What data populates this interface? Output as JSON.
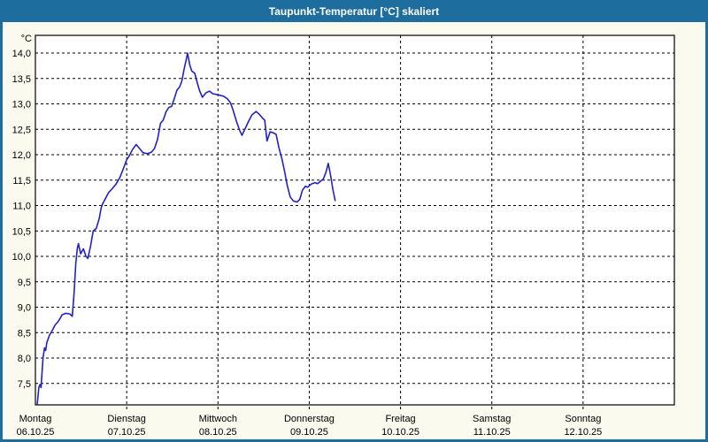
{
  "window": {
    "title": "Taupunkt-Temperatur [°C] skaliert"
  },
  "chart_data": {
    "type": "line",
    "title": "Taupunkt-Temperatur [°C] skaliert",
    "ylabel": "°C",
    "xlabel": "",
    "ylim": [
      7.5,
      14.0
    ],
    "ytick_step": 0.5,
    "grid": "dashed-black-on-white",
    "legend": "none",
    "x_days": [
      {
        "name": "Montag",
        "date": "06.10.25"
      },
      {
        "name": "Dienstag",
        "date": "07.10.25"
      },
      {
        "name": "Mittwoch",
        "date": "08.10.25"
      },
      {
        "name": "Donnerstag",
        "date": "09.10.25"
      },
      {
        "name": "Freitag",
        "date": "10.10.25"
      },
      {
        "name": "Samstag",
        "date": "11.10.25"
      },
      {
        "name": "Sonntag",
        "date": "12.10.25"
      }
    ],
    "colors": {
      "line": "#2121c8",
      "plot_bg": "#ffffff",
      "frame": "#1d6e9e",
      "outer_bg": "#fbfaef",
      "grid": "#000000",
      "title_text": "#ffffff"
    },
    "series": [
      {
        "name": "Taupunkt",
        "unit": "°C",
        "points_format": "[hours_since_monday_00, temperature_C]",
        "points": [
          [
            0.5,
            7.1
          ],
          [
            0.9,
            7.42
          ],
          [
            1.2,
            7.48
          ],
          [
            1.5,
            7.42
          ],
          [
            2.0,
            8.0
          ],
          [
            2.4,
            8.2
          ],
          [
            2.7,
            8.15
          ],
          [
            3.0,
            8.3
          ],
          [
            3.7,
            8.45
          ],
          [
            4.5,
            8.55
          ],
          [
            5.2,
            8.65
          ],
          [
            6.0,
            8.72
          ],
          [
            6.5,
            8.78
          ],
          [
            7.0,
            8.85
          ],
          [
            8.0,
            8.88
          ],
          [
            9.0,
            8.87
          ],
          [
            9.7,
            8.82
          ],
          [
            10.2,
            9.3
          ],
          [
            10.6,
            9.85
          ],
          [
            11.0,
            10.15
          ],
          [
            11.3,
            10.25
          ],
          [
            11.9,
            10.05
          ],
          [
            12.6,
            10.15
          ],
          [
            13.3,
            10.0
          ],
          [
            13.8,
            9.96
          ],
          [
            14.5,
            10.2
          ],
          [
            15.2,
            10.5
          ],
          [
            16.0,
            10.55
          ],
          [
            16.8,
            10.75
          ],
          [
            17.3,
            10.95
          ],
          [
            17.6,
            11.02
          ],
          [
            18.3,
            11.12
          ],
          [
            19.2,
            11.25
          ],
          [
            20.2,
            11.33
          ],
          [
            21.2,
            11.42
          ],
          [
            22.2,
            11.55
          ],
          [
            23.1,
            11.72
          ],
          [
            24.0,
            11.9
          ],
          [
            24.7,
            11.98
          ],
          [
            25.5,
            12.1
          ],
          [
            26.5,
            12.2
          ],
          [
            27.3,
            12.13
          ],
          [
            28.3,
            12.04
          ],
          [
            29.5,
            12.02
          ],
          [
            30.5,
            12.05
          ],
          [
            31.3,
            12.12
          ],
          [
            32.1,
            12.3
          ],
          [
            32.9,
            12.62
          ],
          [
            33.6,
            12.68
          ],
          [
            34.4,
            12.85
          ],
          [
            35.1,
            12.93
          ],
          [
            35.8,
            12.95
          ],
          [
            36.5,
            13.1
          ],
          [
            37.2,
            13.27
          ],
          [
            37.9,
            13.33
          ],
          [
            38.5,
            13.45
          ],
          [
            39.1,
            13.68
          ],
          [
            39.6,
            13.85
          ],
          [
            40.0,
            14.0
          ],
          [
            40.6,
            13.76
          ],
          [
            41.1,
            13.65
          ],
          [
            41.9,
            13.6
          ],
          [
            42.6,
            13.4
          ],
          [
            43.2,
            13.25
          ],
          [
            43.9,
            13.13
          ],
          [
            44.9,
            13.22
          ],
          [
            45.8,
            13.25
          ],
          [
            46.6,
            13.2
          ],
          [
            48.0,
            13.18
          ],
          [
            49.5,
            13.15
          ],
          [
            50.5,
            13.1
          ],
          [
            51.3,
            13.02
          ],
          [
            52.0,
            12.87
          ],
          [
            52.9,
            12.65
          ],
          [
            53.7,
            12.48
          ],
          [
            54.3,
            12.38
          ],
          [
            55.2,
            12.52
          ],
          [
            56.0,
            12.65
          ],
          [
            56.9,
            12.78
          ],
          [
            58.0,
            12.85
          ],
          [
            58.8,
            12.8
          ],
          [
            59.6,
            12.73
          ],
          [
            60.3,
            12.68
          ],
          [
            60.9,
            12.27
          ],
          [
            61.7,
            12.45
          ],
          [
            62.6,
            12.43
          ],
          [
            63.3,
            12.4
          ],
          [
            64.0,
            12.15
          ],
          [
            64.8,
            11.92
          ],
          [
            65.5,
            11.68
          ],
          [
            66.2,
            11.4
          ],
          [
            67.0,
            11.17
          ],
          [
            67.8,
            11.09
          ],
          [
            68.8,
            11.07
          ],
          [
            69.5,
            11.12
          ],
          [
            70.2,
            11.3
          ],
          [
            71.0,
            11.38
          ],
          [
            71.6,
            11.36
          ],
          [
            72.5,
            11.42
          ],
          [
            73.5,
            11.45
          ],
          [
            74.2,
            11.43
          ],
          [
            75.0,
            11.48
          ],
          [
            75.7,
            11.52
          ],
          [
            76.4,
            11.65
          ],
          [
            77.0,
            11.83
          ],
          [
            77.6,
            11.6
          ],
          [
            78.2,
            11.32
          ],
          [
            78.8,
            11.1
          ]
        ]
      }
    ]
  }
}
